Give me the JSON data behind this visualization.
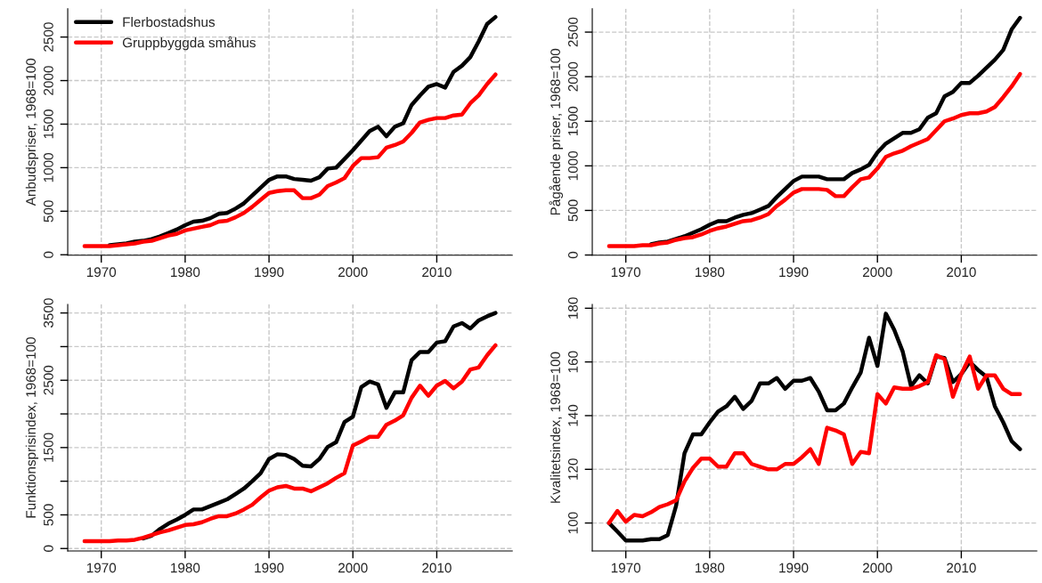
{
  "chart_data": [
    {
      "type": "line",
      "ylabel": "Anbudspriser, 1968=100",
      "x": [
        1968,
        1969,
        1970,
        1971,
        1972,
        1973,
        1974,
        1975,
        1976,
        1977,
        1978,
        1979,
        1980,
        1981,
        1982,
        1983,
        1984,
        1985,
        1986,
        1987,
        1988,
        1989,
        1990,
        1991,
        1992,
        1993,
        1994,
        1995,
        1996,
        1997,
        1998,
        1999,
        2000,
        2001,
        2002,
        2003,
        2004,
        2005,
        2006,
        2007,
        2008,
        2009,
        2010,
        2011,
        2012,
        2013,
        2014,
        2015,
        2016,
        2017
      ],
      "series": [
        {
          "name": "Flerbostadshus",
          "color": "#000000",
          "values": [
            null,
            null,
            null,
            110,
            120,
            130,
            150,
            160,
            180,
            210,
            250,
            290,
            340,
            380,
            390,
            420,
            470,
            480,
            530,
            590,
            680,
            770,
            860,
            900,
            900,
            870,
            860,
            850,
            890,
            990,
            1000,
            1100,
            1200,
            1310,
            1420,
            1470,
            1360,
            1470,
            1510,
            1720,
            1830,
            1930,
            1960,
            1920,
            2100,
            2170,
            2270,
            2450,
            2650,
            2730
          ]
        },
        {
          "name": "Gruppbyggda småhus",
          "color": "#ff0000",
          "values": [
            100,
            100,
            100,
            100,
            110,
            120,
            130,
            150,
            160,
            190,
            220,
            240,
            280,
            300,
            320,
            340,
            380,
            390,
            430,
            480,
            550,
            630,
            710,
            730,
            740,
            740,
            650,
            650,
            690,
            790,
            830,
            880,
            1020,
            1110,
            1110,
            1120,
            1230,
            1260,
            1300,
            1400,
            1520,
            1550,
            1570,
            1570,
            1600,
            1610,
            1740,
            1830,
            1960,
            2070
          ]
        }
      ],
      "xlim": [
        1966,
        2019
      ],
      "xticks": [
        1970,
        1980,
        1990,
        2000,
        2010
      ],
      "ylim": [
        -5,
        2825
      ],
      "yticks": [
        0,
        500,
        1000,
        1500,
        2000,
        2500
      ],
      "grid": true,
      "legend": "top left"
    },
    {
      "type": "line",
      "ylabel": "Pågående priser, 1968=100",
      "x": [
        1968,
        1969,
        1970,
        1971,
        1972,
        1973,
        1974,
        1975,
        1976,
        1977,
        1978,
        1979,
        1980,
        1981,
        1982,
        1983,
        1984,
        1985,
        1986,
        1987,
        1988,
        1989,
        1990,
        1991,
        1992,
        1993,
        1994,
        1995,
        1996,
        1997,
        1998,
        1999,
        2000,
        2001,
        2002,
        2003,
        2004,
        2005,
        2006,
        2007,
        2008,
        2009,
        2010,
        2011,
        2012,
        2013,
        2014,
        2015,
        2016,
        2017
      ],
      "series": [
        {
          "color": "#000000",
          "values": [
            null,
            null,
            null,
            null,
            null,
            120,
            140,
            150,
            180,
            210,
            250,
            290,
            340,
            380,
            380,
            420,
            450,
            470,
            510,
            550,
            650,
            740,
            830,
            880,
            880,
            880,
            850,
            850,
            850,
            920,
            960,
            1010,
            1150,
            1250,
            1310,
            1370,
            1370,
            1410,
            1540,
            1590,
            1780,
            1830,
            1930,
            1930,
            2010,
            2100,
            2190,
            2300,
            2530,
            2660
          ]
        },
        {
          "color": "#ff0000",
          "values": [
            100,
            100,
            100,
            100,
            110,
            110,
            130,
            140,
            170,
            190,
            200,
            230,
            270,
            300,
            320,
            350,
            380,
            390,
            420,
            460,
            550,
            620,
            700,
            740,
            740,
            740,
            730,
            660,
            660,
            760,
            850,
            870,
            970,
            1100,
            1140,
            1170,
            1220,
            1260,
            1300,
            1400,
            1500,
            1530,
            1570,
            1590,
            1590,
            1610,
            1660,
            1770,
            1890,
            2030
          ]
        }
      ],
      "xlim": [
        1966,
        2019
      ],
      "xticks": [
        1970,
        1980,
        1990,
        2000,
        2010
      ],
      "ylim": [
        -2,
        2762
      ],
      "yticks": [
        0,
        500,
        1000,
        1500,
        2000,
        2500
      ],
      "grid": true
    },
    {
      "type": "line",
      "ylabel": "Funktionsprisindex, 1968=100",
      "x": [
        1968,
        1969,
        1970,
        1971,
        1972,
        1973,
        1974,
        1975,
        1976,
        1977,
        1978,
        1979,
        1980,
        1981,
        1982,
        1983,
        1984,
        1985,
        1986,
        1987,
        1988,
        1989,
        1990,
        1991,
        1992,
        1993,
        1994,
        1995,
        1996,
        1997,
        1998,
        1999,
        2000,
        2001,
        2002,
        2003,
        2004,
        2005,
        2006,
        2007,
        2008,
        2009,
        2010,
        2011,
        2012,
        2013,
        2014,
        2015,
        2016,
        2017
      ],
      "series": [
        {
          "color": "#000000",
          "values": [
            null,
            null,
            null,
            null,
            null,
            null,
            null,
            150,
            190,
            290,
            370,
            430,
            500,
            580,
            580,
            630,
            680,
            730,
            810,
            890,
            1000,
            1120,
            1330,
            1400,
            1390,
            1330,
            1230,
            1220,
            1330,
            1510,
            1580,
            1880,
            1960,
            2400,
            2480,
            2440,
            2090,
            2320,
            2320,
            2800,
            2920,
            2920,
            3060,
            3080,
            3300,
            3350,
            3270,
            3390,
            3450,
            3500
          ]
        },
        {
          "color": "#ff0000",
          "values": [
            110,
            110,
            110,
            110,
            120,
            120,
            130,
            160,
            200,
            240,
            270,
            310,
            350,
            360,
            390,
            440,
            480,
            480,
            520,
            580,
            650,
            760,
            860,
            910,
            930,
            890,
            890,
            850,
            910,
            970,
            1050,
            1120,
            1530,
            1590,
            1660,
            1660,
            1840,
            1900,
            1980,
            2240,
            2420,
            2270,
            2420,
            2490,
            2380,
            2480,
            2660,
            2690,
            2870,
            3020
          ]
        }
      ],
      "xlim": [
        1966,
        2019
      ],
      "xticks": [
        1970,
        1980,
        1990,
        2000,
        2010
      ],
      "ylim": [
        -36,
        3626
      ],
      "yticks": [
        0,
        500,
        {
          "value": 1000,
          "label": null
        },
        1500,
        {
          "value": 2000,
          "label": null
        },
        2500,
        {
          "value": 3000,
          "label": null
        },
        3500
      ],
      "grid": true
    },
    {
      "type": "line",
      "ylabel": "Kvalitetsindex, 1968=100",
      "x": [
        1968,
        1969,
        1970,
        1971,
        1972,
        1973,
        1974,
        1975,
        1976,
        1977,
        1978,
        1979,
        1980,
        1981,
        1982,
        1983,
        1984,
        1985,
        1986,
        1987,
        1988,
        1989,
        1990,
        1991,
        1992,
        1993,
        1994,
        1995,
        1996,
        1997,
        1998,
        1999,
        2000,
        2001,
        2002,
        2003,
        2004,
        2005,
        2006,
        2007,
        2008,
        2009,
        2010,
        2011,
        2012,
        2013,
        2014,
        2015,
        2016,
        2017
      ],
      "series": [
        {
          "color": "#000000",
          "values": [
            100,
            96.8,
            93.5,
            93.5,
            93.5,
            94,
            94,
            95.5,
            106.5,
            126,
            133,
            133,
            137.5,
            141.5,
            143.5,
            147,
            142.5,
            145.5,
            152,
            152,
            154,
            150,
            153,
            153,
            154,
            149,
            142,
            142,
            144.5,
            150.5,
            156,
            169,
            158.5,
            178,
            172,
            164,
            151,
            155,
            152,
            162,
            161.5,
            152.5,
            155.5,
            160,
            157,
            154.5,
            143.5,
            137.5,
            130.5,
            127.5
          ]
        },
        {
          "color": "#ff0000",
          "values": [
            100,
            104.5,
            100.5,
            103,
            102.5,
            104,
            106,
            107,
            108.5,
            115.5,
            120.5,
            124,
            124,
            121,
            121,
            126,
            126,
            122,
            121,
            120,
            120,
            122,
            122,
            124.5,
            127.5,
            122,
            135.5,
            134.5,
            133,
            122,
            126.5,
            126,
            148,
            144.5,
            150.5,
            150,
            150,
            151,
            152.5,
            162.5,
            161,
            147,
            155.5,
            162,
            150,
            155,
            155,
            150,
            148,
            148
          ]
        }
      ],
      "xlim": [
        1966,
        2019
      ],
      "xticks": [
        1970,
        1980,
        1990,
        2000,
        2010
      ],
      "ylim": [
        89.6,
        181.4
      ],
      "yticks": [
        100,
        120,
        140,
        160,
        180
      ],
      "grid": true
    }
  ]
}
